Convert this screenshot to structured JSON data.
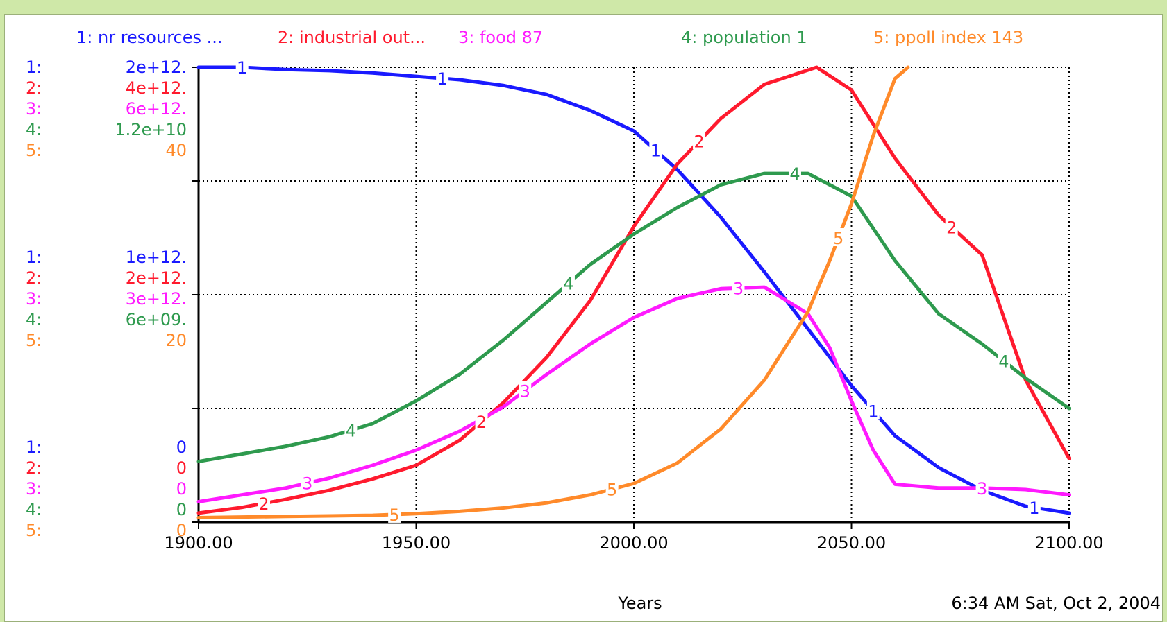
{
  "chart_data": {
    "type": "line",
    "title": "",
    "xlabel": "Years",
    "ylabel": "",
    "x_ticks": [
      "1900.00",
      "1950.00",
      "2000.00",
      "2050.00",
      "2100.00"
    ],
    "xlim": [
      1900,
      2100
    ],
    "grid": true,
    "legend_position": "top",
    "timestamp": "6:34 AM  Sat, Oct 2, 2004",
    "axis_labels": {
      "top": [
        "2e+12.",
        "4e+12.",
        "6e+12.",
        "1.2e+10",
        "40"
      ],
      "middle": [
        "1e+12.",
        "2e+12.",
        "3e+12.",
        "6e+09.",
        "20"
      ],
      "bottom": [
        "0",
        "0",
        "0",
        "0",
        "0"
      ]
    },
    "series": [
      {
        "id": "1",
        "tag": "1:",
        "legend": "1: nr resources ...",
        "color": "#1a1aff",
        "ylim": [
          0,
          2000000000000.0
        ],
        "marker_years": [
          1910,
          1956,
          2005,
          2055,
          2092
        ],
        "x": [
          1900,
          1910,
          1920,
          1930,
          1940,
          1950,
          1960,
          1970,
          1980,
          1990,
          2000,
          2010,
          2020,
          2030,
          2040,
          2050,
          2060,
          2070,
          2080,
          2090,
          2100
        ],
        "y": [
          2000000000000.0,
          2000000000000.0,
          1990000000000.0,
          1985000000000.0,
          1975000000000.0,
          1960000000000.0,
          1945000000000.0,
          1920000000000.0,
          1880000000000.0,
          1810000000000.0,
          1720000000000.0,
          1550000000000.0,
          1340000000000.0,
          1100000000000.0,
          850000000000.0,
          600000000000.0,
          380000000000.0,
          240000000000.0,
          140000000000.0,
          70000000000.0,
          40000000000.0
        ]
      },
      {
        "id": "2",
        "tag": "2:",
        "legend": "2: industrial out...",
        "color": "#ff1a2e",
        "ylim": [
          0,
          4000000000000.0
        ],
        "marker_years": [
          1915,
          1965,
          2015,
          2073
        ],
        "x": [
          1900,
          1910,
          1920,
          1930,
          1940,
          1950,
          1960,
          1970,
          1980,
          1990,
          2000,
          2010,
          2020,
          2030,
          2042,
          2050,
          2060,
          2070,
          2080,
          2090,
          2100
        ],
        "y": [
          80000000000.0,
          130000000000.0,
          200000000000.0,
          280000000000.0,
          380000000000.0,
          500000000000.0,
          720000000000.0,
          1050000000000.0,
          1450000000000.0,
          1950000000000.0,
          2600000000000.0,
          3150000000000.0,
          3550000000000.0,
          3850000000000.0,
          4000000000000.0,
          3800000000000.0,
          3200000000000.0,
          2700000000000.0,
          2350000000000.0,
          1250000000000.0,
          560000000000.0
        ]
      },
      {
        "id": "3",
        "tag": "3:",
        "legend": "3: food 87",
        "color": "#ff1aff",
        "ylim": [
          0,
          6000000000000.0
        ],
        "marker_years": [
          1925,
          1975,
          2024,
          2080
        ],
        "x": [
          1900,
          1910,
          1920,
          1930,
          1940,
          1950,
          1960,
          1970,
          1980,
          1990,
          2000,
          2010,
          2020,
          2030,
          2040,
          2045,
          2050,
          2055,
          2060,
          2070,
          2080,
          2090,
          2100
        ],
        "y": [
          270000000000.0,
          360000000000.0,
          450000000000.0,
          580000000000.0,
          750000000000.0,
          950000000000.0,
          1200000000000.0,
          1520000000000.0,
          1950000000000.0,
          2350000000000.0,
          2700000000000.0,
          2950000000000.0,
          3080000000000.0,
          3100000000000.0,
          2750000000000.0,
          2300000000000.0,
          1600000000000.0,
          950000000000.0,
          500000000000.0,
          450000000000.0,
          450000000000.0,
          430000000000.0,
          360000000000.0
        ]
      },
      {
        "id": "4",
        "tag": "4:",
        "legend": "4: population 1",
        "color": "#2e9a4e",
        "ylim": [
          0,
          12000000000.0
        ],
        "marker_years": [
          1935,
          1985,
          2037,
          2085
        ],
        "x": [
          1900,
          1910,
          1920,
          1930,
          1940,
          1950,
          1960,
          1970,
          1980,
          1990,
          2000,
          2010,
          2020,
          2030,
          2040,
          2050,
          2060,
          2070,
          2080,
          2090,
          2100
        ],
        "y": [
          1600000000.0,
          1800000000.0,
          2000000000.0,
          2250000000.0,
          2600000000.0,
          3200000000.0,
          3900000000.0,
          4800000000.0,
          5800000000.0,
          6800000000.0,
          7600000000.0,
          8300000000.0,
          8900000000.0,
          9200000000.0,
          9200000000.0,
          8600000000.0,
          6900000000.0,
          5500000000.0,
          4700000000.0,
          3800000000.0,
          3000000000.0
        ]
      },
      {
        "id": "5",
        "tag": "5:",
        "legend": "5: ppoll index 143",
        "color": "#ff8a2a",
        "ylim": [
          0,
          40
        ],
        "marker_years": [
          1945,
          1995,
          2047
        ],
        "x": [
          1900,
          1910,
          1920,
          1930,
          1940,
          1950,
          1960,
          1970,
          1980,
          1990,
          2000,
          2010,
          2020,
          2030,
          2040,
          2045,
          2050,
          2055,
          2060,
          2063
        ],
        "y": [
          0.4,
          0.45,
          0.5,
          0.55,
          0.6,
          0.75,
          0.95,
          1.25,
          1.7,
          2.4,
          3.4,
          5.2,
          8.2,
          12.5,
          18.5,
          23.0,
          28.0,
          34.0,
          39.0,
          40.0
        ]
      }
    ]
  }
}
